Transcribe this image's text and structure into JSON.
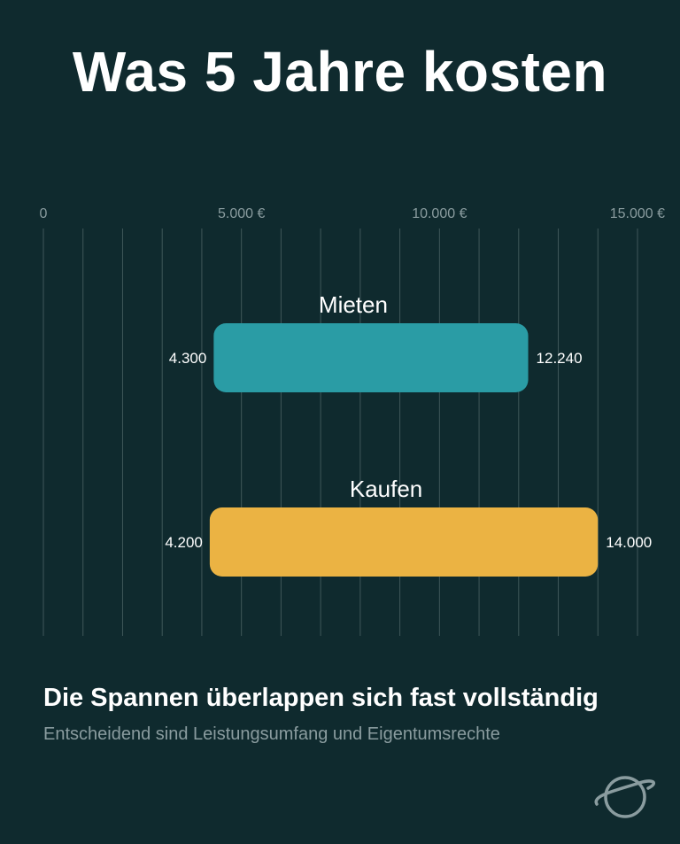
{
  "header": {
    "title": "Was 5 Jahre kosten"
  },
  "chart_data": {
    "type": "bar",
    "orientation": "horizontal",
    "subtype": "range",
    "categories": [
      "Mieten",
      "Kaufen"
    ],
    "ranges": [
      {
        "category": "Mieten",
        "low": 4300,
        "high": 12240,
        "low_label": "4.300",
        "high_label": "12.240",
        "color": "#2a9ca5"
      },
      {
        "category": "Kaufen",
        "low": 4200,
        "high": 14000,
        "low_label": "4.200",
        "high_label": "14.000",
        "color": "#ebb343"
      }
    ],
    "xlim": [
      0,
      15000
    ],
    "ticks": [
      {
        "value": 0,
        "label": "0"
      },
      {
        "value": 5000,
        "label": "5.000 €"
      },
      {
        "value": 10000,
        "label": "10.000 €"
      },
      {
        "value": 15000,
        "label": "15.000 €"
      }
    ],
    "gridlines": [
      0,
      1000,
      2000,
      3000,
      4000,
      5000,
      6000,
      7000,
      8000,
      9000,
      10000,
      11000,
      12000,
      13000,
      14000,
      15000
    ],
    "grid": true,
    "legend": "none",
    "grid_color": "#3f5759",
    "tick_color": "#8a9c9f"
  },
  "footer": {
    "subtitle": "Die Spannen überlappen sich fast vollständig",
    "caption": "Entscheidend sind Leistungsumfang und Eigentumsrechte",
    "logo_icon": "planet-ring-icon"
  }
}
